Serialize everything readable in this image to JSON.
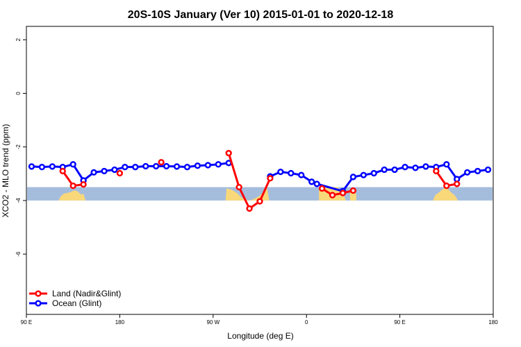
{
  "chart_data": {
    "type": "line",
    "title": "20S-10S January (Ver 10)   2015-01-01 to 2020-12-18",
    "xlabel": "Longitude (deg E)",
    "ylabel": "XCO2 - MLO trend (ppm)",
    "xlim": [
      90,
      540
    ],
    "ylim": [
      -8.25,
      2.5
    ],
    "x_ticks": [
      {
        "value": 90,
        "label": "90 E"
      },
      {
        "value": 180,
        "label": "180"
      },
      {
        "value": 270,
        "label": "90 W"
      },
      {
        "value": 360,
        "label": "0"
      },
      {
        "value": 450,
        "label": "90 E"
      },
      {
        "value": 540,
        "label": "180"
      }
    ],
    "y_ticks": [
      {
        "value": 2,
        "label": "2"
      },
      {
        "value": 0,
        "label": "0"
      },
      {
        "value": -2,
        "label": "-2"
      },
      {
        "value": -4,
        "label": "-4"
      },
      {
        "value": -6,
        "label": "-6"
      }
    ],
    "series": [
      {
        "name": "Land (Nadir&Glint)",
        "color": "#ff0000",
        "segments": [
          {
            "x": [
              125,
              135,
              145
            ],
            "y": [
              -2.9,
              -3.45,
              -3.4
            ]
          },
          {
            "x": [
              180
            ],
            "y": [
              -2.98
            ]
          },
          {
            "x": [
              220
            ],
            "y": [
              -2.57
            ]
          },
          {
            "x": [
              285,
              295,
              305,
              315,
              325
            ],
            "y": [
              -2.23,
              -3.5,
              -4.3,
              -4.03,
              -3.17
            ]
          },
          {
            "x": [
              375,
              385,
              395,
              405
            ],
            "y": [
              -3.55,
              -3.8,
              -3.72,
              -3.63
            ]
          },
          {
            "x": [
              485,
              495,
              505
            ],
            "y": [
              -2.9,
              -3.45,
              -3.38
            ]
          }
        ]
      },
      {
        "name": "Ocean (Glint)",
        "color": "#0000ff",
        "segments": [
          {
            "x": [
              95,
              105,
              115,
              125,
              135,
              145,
              155,
              165,
              175,
              185,
              195,
              205,
              215,
              225,
              235,
              245,
              255,
              265,
              275,
              285
            ],
            "y": [
              -2.73,
              -2.75,
              -2.73,
              -2.75,
              -2.65,
              -3.25,
              -2.95,
              -2.9,
              -2.85,
              -2.75,
              -2.75,
              -2.72,
              -2.72,
              -2.72,
              -2.73,
              -2.75,
              -2.7,
              -2.68,
              -2.65,
              -2.6
            ]
          },
          {
            "x": [
              325,
              335,
              345,
              355,
              365,
              370,
              395,
              405,
              415,
              425,
              435,
              445,
              455,
              465,
              475,
              485,
              495,
              505,
              515,
              525,
              535
            ],
            "y": [
              -3.1,
              -2.93,
              -2.98,
              -3.05,
              -3.3,
              -3.38,
              -3.65,
              -3.12,
              -3.05,
              -2.98,
              -2.85,
              -2.85,
              -2.75,
              -2.78,
              -2.73,
              -2.75,
              -2.65,
              -3.2,
              -2.95,
              -2.9,
              -2.85
            ]
          }
        ]
      }
    ],
    "background_band": {
      "y_range": [
        -4,
        -3.5
      ],
      "ocean_color": "#a5bddd",
      "land_color": "#f9d87a",
      "land_profile": [
        [
          121,
          -3.5
        ],
        [
          121,
          -4
        ],
        [
          122,
          -3.9
        ],
        [
          124,
          -3.82
        ],
        [
          127,
          -3.78
        ],
        [
          130,
          -3.75
        ],
        [
          133,
          -3.7
        ],
        [
          136,
          -3.68
        ],
        [
          139,
          -3.72
        ],
        [
          141,
          -3.8
        ],
        [
          143,
          -3.85
        ],
        [
          145,
          -3.9
        ],
        [
          147,
          -4
        ],
        [
          147,
          -3.5
        ]
      ],
      "land_regions": [
        [
          [
            121,
            -4
          ],
          [
            123,
            -3.85
          ],
          [
            126,
            -3.75
          ],
          [
            129,
            -3.72
          ],
          [
            133,
            -3.68
          ],
          [
            136,
            -3.62
          ],
          [
            139,
            -3.65
          ],
          [
            141,
            -3.72
          ],
          [
            143,
            -3.78
          ],
          [
            145,
            -3.75
          ],
          [
            147,
            -4
          ]
        ],
        [
          [
            282,
            -4
          ],
          [
            283,
            -3.55
          ],
          [
            288,
            -3.6
          ],
          [
            293,
            -3.72
          ],
          [
            297,
            -3.88
          ],
          [
            300,
            -3.95
          ],
          [
            305,
            -4
          ],
          [
            309,
            -3.95
          ],
          [
            314,
            -3.85
          ],
          [
            318,
            -3.7
          ],
          [
            322,
            -3.55
          ],
          [
            324,
            -4
          ]
        ],
        [
          [
            372,
            -4
          ],
          [
            372,
            -3.5
          ],
          [
            390,
            -3.5
          ],
          [
            393,
            -3.65
          ],
          [
            396,
            -3.82
          ],
          [
            398,
            -4
          ]
        ],
        [
          [
            402,
            -4
          ],
          [
            402,
            -3.7
          ],
          [
            405,
            -3.65
          ],
          [
            408,
            -3.75
          ],
          [
            408,
            -4
          ]
        ],
        [
          [
            482,
            -4
          ],
          [
            484,
            -3.8
          ],
          [
            487,
            -3.72
          ],
          [
            490,
            -3.62
          ],
          [
            494,
            -3.5
          ],
          [
            497,
            -3.6
          ],
          [
            500,
            -3.72
          ],
          [
            503,
            -3.8
          ],
          [
            506,
            -4
          ]
        ]
      ]
    },
    "legend": {
      "position": "bottom-left"
    }
  }
}
